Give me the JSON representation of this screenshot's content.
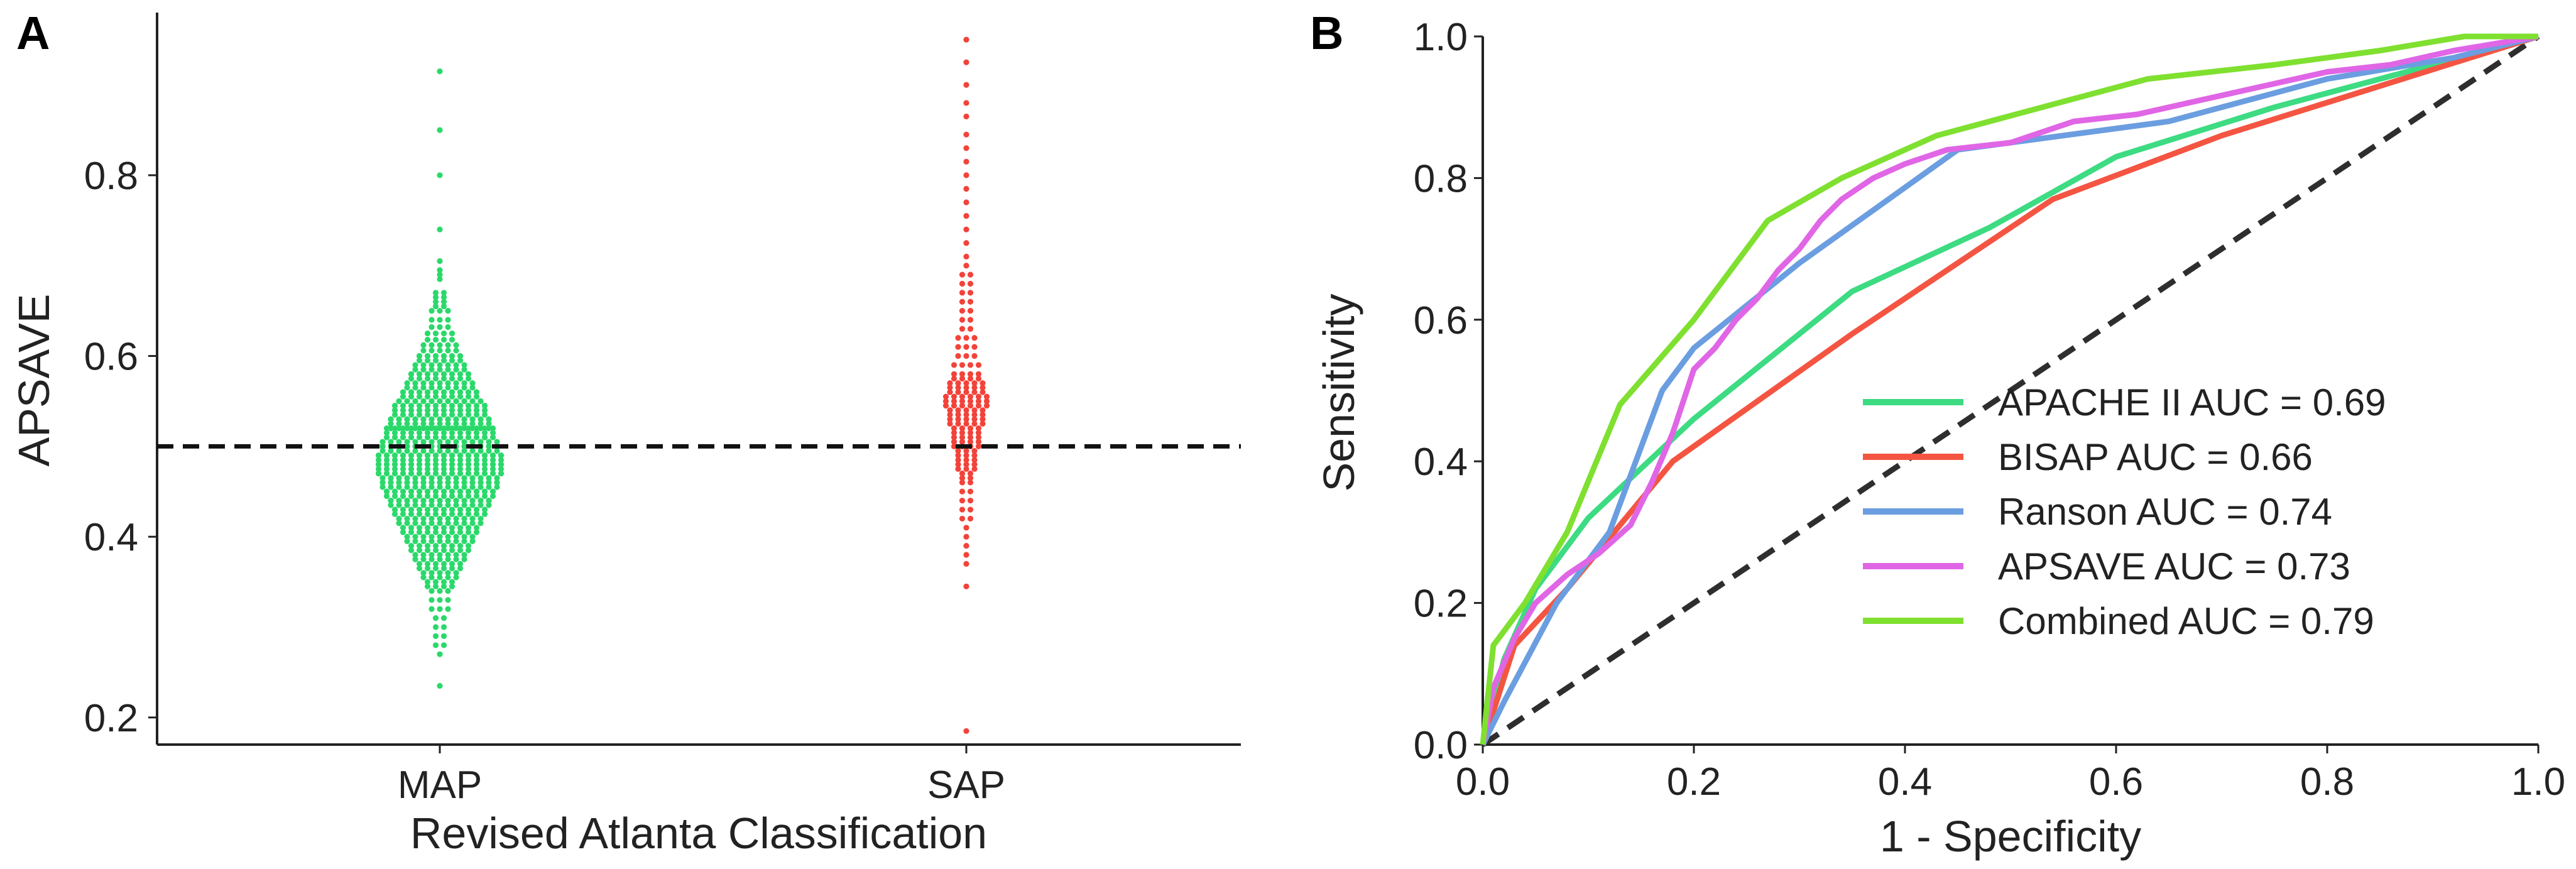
{
  "panels": [
    {
      "letter": "A"
    },
    {
      "letter": "B"
    }
  ],
  "chart_data": [
    {
      "type": "scatter",
      "subtype": "swarm",
      "title": "",
      "xlabel": "Revised Atlanta Classification",
      "ylabel": "APSAVE",
      "categories": [
        "MAP",
        "SAP"
      ],
      "ylim": [
        0.17,
        0.98
      ],
      "yticks": [
        0.2,
        0.4,
        0.6,
        0.8
      ],
      "ytick_labels": [
        "0.2",
        "0.4",
        "0.6",
        "0.8"
      ],
      "reference_line": {
        "y": 0.5,
        "style": "dashed",
        "color": "#111111"
      },
      "grid": false,
      "series": [
        {
          "name": "MAP",
          "color": "#2bd96b",
          "values": [
            0.915,
            0.85,
            0.8,
            0.74,
            0.705,
            0.695,
            0.69,
            0.685,
            0.67,
            0.665,
            0.66,
            0.655,
            0.65,
            0.64,
            0.632,
            0.625,
            0.618,
            0.612,
            0.606,
            0.6,
            0.6,
            0.595,
            0.59,
            0.585,
            0.58,
            0.58,
            0.575,
            0.57,
            0.565,
            0.56,
            0.56,
            0.555,
            0.55,
            0.55,
            0.545,
            0.54,
            0.54,
            0.535,
            0.53,
            0.53,
            0.525,
            0.52,
            0.52,
            0.515,
            0.51,
            0.51,
            0.505,
            0.5,
            0.5,
            0.495,
            0.49,
            0.49,
            0.485,
            0.48,
            0.48,
            0.475,
            0.47,
            0.47,
            0.465,
            0.46,
            0.46,
            0.455,
            0.45,
            0.45,
            0.445,
            0.44,
            0.44,
            0.435,
            0.43,
            0.43,
            0.425,
            0.42,
            0.415,
            0.41,
            0.405,
            0.4,
            0.395,
            0.39,
            0.385,
            0.38,
            0.375,
            0.37,
            0.365,
            0.36,
            0.355,
            0.35,
            0.345,
            0.34,
            0.33,
            0.32,
            0.31,
            0.3,
            0.29,
            0.28,
            0.27,
            0.235
          ],
          "weights": [
            1,
            1,
            1,
            1,
            1,
            1,
            1,
            1,
            2,
            2,
            2,
            2,
            3,
            3,
            3,
            4,
            4,
            5,
            5,
            6,
            6,
            6,
            7,
            7,
            8,
            8,
            8,
            9,
            9,
            10,
            10,
            10,
            11,
            11,
            12,
            12,
            12,
            12,
            13,
            13,
            13,
            13,
            14,
            14,
            14,
            14,
            15,
            15,
            15,
            15,
            16,
            16,
            16,
            16,
            16,
            16,
            16,
            16,
            15,
            15,
            15,
            15,
            14,
            14,
            14,
            13,
            13,
            13,
            12,
            12,
            12,
            11,
            11,
            10,
            10,
            9,
            9,
            8,
            8,
            7,
            7,
            6,
            6,
            5,
            5,
            4,
            4,
            3,
            3,
            3,
            2,
            2,
            2,
            2,
            1,
            1
          ]
        },
        {
          "name": "SAP",
          "color": "#f2433a",
          "values": [
            0.95,
            0.925,
            0.9,
            0.88,
            0.865,
            0.845,
            0.83,
            0.815,
            0.8,
            0.785,
            0.77,
            0.755,
            0.74,
            0.725,
            0.71,
            0.7,
            0.69,
            0.68,
            0.67,
            0.66,
            0.65,
            0.64,
            0.63,
            0.62,
            0.61,
            0.6,
            0.59,
            0.58,
            0.575,
            0.57,
            0.565,
            0.56,
            0.555,
            0.55,
            0.545,
            0.54,
            0.535,
            0.53,
            0.525,
            0.52,
            0.515,
            0.51,
            0.505,
            0.5,
            0.495,
            0.49,
            0.485,
            0.48,
            0.475,
            0.47,
            0.465,
            0.46,
            0.45,
            0.44,
            0.43,
            0.42,
            0.41,
            0.4,
            0.39,
            0.38,
            0.37,
            0.345,
            0.185
          ],
          "weights": [
            1,
            1,
            1,
            1,
            1,
            1,
            1,
            1,
            1,
            1,
            1,
            1,
            1,
            1,
            1,
            1,
            2,
            2,
            2,
            2,
            2,
            2,
            2,
            3,
            3,
            3,
            4,
            4,
            4,
            5,
            5,
            5,
            6,
            6,
            6,
            5,
            5,
            5,
            5,
            4,
            4,
            4,
            4,
            4,
            3,
            3,
            3,
            3,
            3,
            2,
            2,
            2,
            2,
            2,
            2,
            2,
            1,
            1,
            1,
            1,
            1,
            1,
            1
          ]
        }
      ]
    },
    {
      "type": "line",
      "title": "",
      "xlabel": "1 - Specificity",
      "ylabel": "Sensitivity",
      "xlim": [
        0.0,
        1.0
      ],
      "ylim": [
        0.0,
        1.0
      ],
      "xticks": [
        0.0,
        0.2,
        0.4,
        0.6,
        0.8,
        1.0
      ],
      "yticks": [
        0.0,
        0.2,
        0.4,
        0.6,
        0.8,
        1.0
      ],
      "xtick_labels": [
        "0.0",
        "0.2",
        "0.4",
        "0.6",
        "0.8",
        "1.0"
      ],
      "ytick_labels": [
        "0.0",
        "0.2",
        "0.4",
        "0.6",
        "0.8",
        "1.0"
      ],
      "grid": false,
      "legend_position": "lower-right",
      "diagonal": {
        "x": [
          0,
          1
        ],
        "y": [
          0,
          1
        ],
        "style": "dashed",
        "color": "#2e2e2e"
      },
      "series": [
        {
          "name": "APACHE II AUC = 0.69",
          "color": "#3ddb82",
          "x": [
            0.0,
            0.02,
            0.05,
            0.1,
            0.2,
            0.35,
            0.48,
            0.6,
            0.75,
            0.9,
            1.0
          ],
          "y": [
            0.0,
            0.12,
            0.22,
            0.32,
            0.46,
            0.64,
            0.73,
            0.83,
            0.9,
            0.96,
            1.0
          ]
        },
        {
          "name": "BISAP AUC = 0.66",
          "color": "#f45542",
          "x": [
            0.0,
            0.03,
            0.08,
            0.18,
            0.35,
            0.54,
            0.7,
            0.85,
            1.0
          ],
          "y": [
            0.0,
            0.14,
            0.22,
            0.4,
            0.58,
            0.77,
            0.86,
            0.93,
            1.0
          ]
        },
        {
          "name": "Ranson AUC = 0.74",
          "color": "#6b9ee0",
          "x": [
            0.0,
            0.02,
            0.07,
            0.12,
            0.17,
            0.2,
            0.3,
            0.45,
            0.65,
            0.8,
            0.92,
            1.0
          ],
          "y": [
            0.0,
            0.06,
            0.2,
            0.3,
            0.5,
            0.56,
            0.68,
            0.84,
            0.88,
            0.94,
            0.97,
            1.0
          ]
        },
        {
          "name": "APSAVE AUC = 0.73",
          "color": "#e066e6",
          "x": [
            0.0,
            0.01,
            0.03,
            0.05,
            0.08,
            0.11,
            0.14,
            0.16,
            0.18,
            0.2,
            0.22,
            0.24,
            0.26,
            0.28,
            0.3,
            0.32,
            0.34,
            0.37,
            0.4,
            0.44,
            0.5,
            0.56,
            0.62,
            0.68,
            0.74,
            0.8,
            0.86,
            0.92,
            0.96,
            1.0
          ],
          "y": [
            0.0,
            0.08,
            0.15,
            0.2,
            0.24,
            0.27,
            0.31,
            0.37,
            0.44,
            0.53,
            0.56,
            0.6,
            0.63,
            0.67,
            0.7,
            0.74,
            0.77,
            0.8,
            0.82,
            0.84,
            0.85,
            0.88,
            0.89,
            0.91,
            0.93,
            0.95,
            0.96,
            0.98,
            0.99,
            1.0
          ]
        },
        {
          "name": "Combined AUC = 0.79",
          "color": "#7fe030",
          "x": [
            0.0,
            0.01,
            0.04,
            0.08,
            0.13,
            0.2,
            0.27,
            0.34,
            0.43,
            0.53,
            0.63,
            0.75,
            0.85,
            0.93,
            1.0
          ],
          "y": [
            0.0,
            0.14,
            0.2,
            0.3,
            0.48,
            0.6,
            0.74,
            0.8,
            0.86,
            0.9,
            0.94,
            0.96,
            0.98,
            1.0,
            1.0
          ]
        }
      ]
    }
  ]
}
